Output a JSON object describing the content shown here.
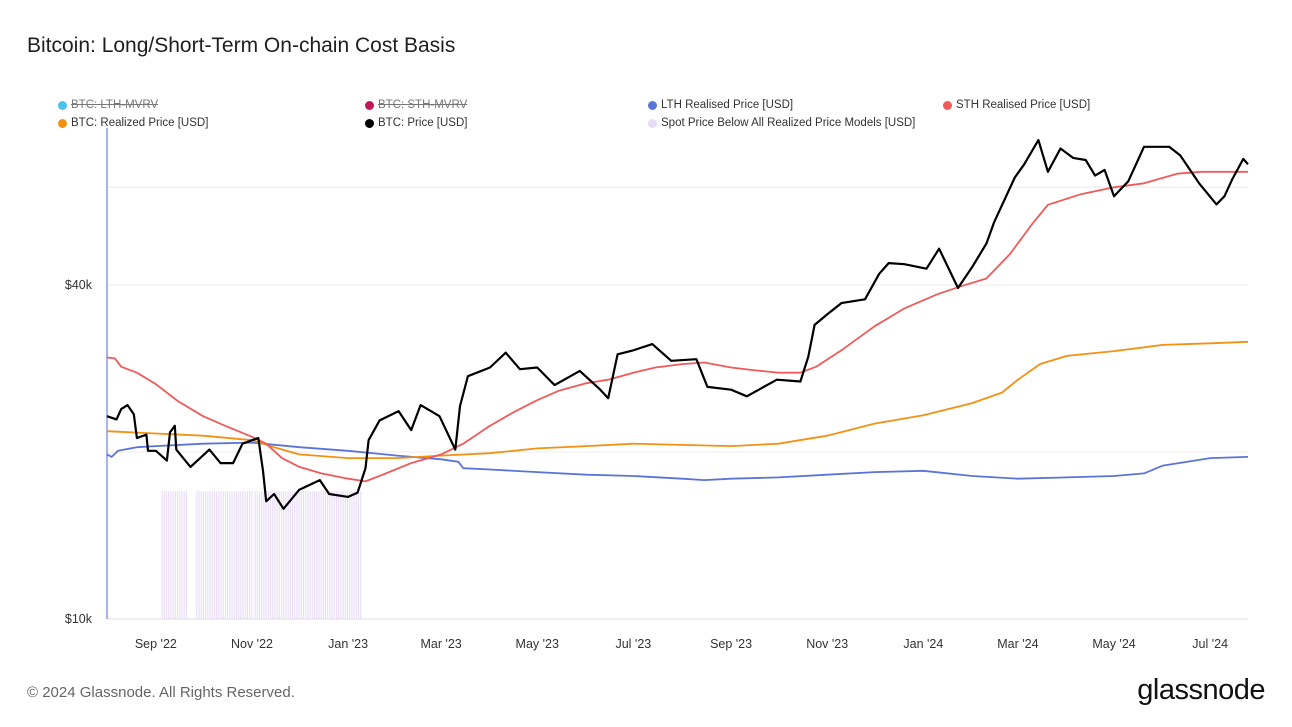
{
  "title": "Bitcoin: Long/Short-Term On-chain Cost Basis",
  "footer": "© 2024 Glassnode. All Rights Reserved.",
  "brand": "glassnode",
  "chart_data": {
    "type": "line",
    "title": "Bitcoin: Long/Short-Term On-chain Cost Basis",
    "y_scale": "log",
    "ylim": [
      10000,
      80000
    ],
    "y_ticks": [
      {
        "value": 10000,
        "label": "$10k"
      },
      {
        "value": 40000,
        "label": "$40k"
      }
    ],
    "x_range": [
      "2022-08-01",
      "2024-07-25"
    ],
    "x_ticks": [
      {
        "date": "2022-09-01",
        "label": "Sep '22"
      },
      {
        "date": "2022-11-01",
        "label": "Nov '22"
      },
      {
        "date": "2023-01-01",
        "label": "Jan '23"
      },
      {
        "date": "2023-03-01",
        "label": "Mar '23"
      },
      {
        "date": "2023-05-01",
        "label": "May '23"
      },
      {
        "date": "2023-07-01",
        "label": "Jul '23"
      },
      {
        "date": "2023-09-01",
        "label": "Sep '23"
      },
      {
        "date": "2023-11-01",
        "label": "Nov '23"
      },
      {
        "date": "2024-01-01",
        "label": "Jan '24"
      },
      {
        "date": "2024-03-01",
        "label": "Mar '24"
      },
      {
        "date": "2024-05-01",
        "label": "May '24"
      },
      {
        "date": "2024-07-01",
        "label": "Jul '24"
      }
    ],
    "legend": [
      {
        "name": "BTC: LTH-MVRV",
        "color": "#4cc3e8",
        "hidden": true
      },
      {
        "name": "BTC: STH-MVRV",
        "color": "#c2185b",
        "hidden": true
      },
      {
        "name": "LTH Realised Price [USD]",
        "color": "#5b74d8",
        "hidden": false
      },
      {
        "name": "STH Realised Price [USD]",
        "color": "#ef5a5a",
        "hidden": false
      },
      {
        "name": "BTC: Realized Price [USD]",
        "color": "#f39112",
        "hidden": false
      },
      {
        "name": "BTC: Price [USD]",
        "color": "#000000",
        "hidden": false
      },
      {
        "name": "Spot Price Below All Realized Price Models [USD]",
        "color": "#e8dcf7",
        "hidden": false
      }
    ],
    "shaded_periods": [
      [
        "2022-09-05",
        "2022-09-21"
      ],
      [
        "2022-09-27",
        "2022-11-01"
      ],
      [
        "2022-11-03",
        "2023-01-10"
      ]
    ],
    "series": [
      {
        "name": "BTC: Price [USD]",
        "color": "#000000",
        "width": 2.2,
        "points": [
          [
            "2022-08-01",
            23200
          ],
          [
            "2022-08-07",
            22900
          ],
          [
            "2022-08-10",
            23900
          ],
          [
            "2022-08-14",
            24300
          ],
          [
            "2022-08-18",
            23400
          ],
          [
            "2022-08-20",
            21200
          ],
          [
            "2022-08-26",
            21500
          ],
          [
            "2022-08-27",
            20100
          ],
          [
            "2022-09-01",
            20100
          ],
          [
            "2022-09-08",
            19300
          ],
          [
            "2022-09-10",
            21700
          ],
          [
            "2022-09-13",
            22300
          ],
          [
            "2022-09-14",
            20200
          ],
          [
            "2022-09-19",
            19400
          ],
          [
            "2022-09-23",
            18800
          ],
          [
            "2022-10-05",
            20200
          ],
          [
            "2022-10-12",
            19100
          ],
          [
            "2022-10-20",
            19100
          ],
          [
            "2022-10-26",
            20700
          ],
          [
            "2022-11-05",
            21200
          ],
          [
            "2022-11-08",
            18500
          ],
          [
            "2022-11-10",
            16300
          ],
          [
            "2022-11-15",
            16800
          ],
          [
            "2022-11-21",
            15800
          ],
          [
            "2022-12-01",
            17100
          ],
          [
            "2022-12-14",
            17800
          ],
          [
            "2022-12-20",
            16800
          ],
          [
            "2023-01-01",
            16600
          ],
          [
            "2023-01-07",
            16900
          ],
          [
            "2023-01-12",
            18700
          ],
          [
            "2023-01-14",
            21000
          ],
          [
            "2023-01-21",
            22800
          ],
          [
            "2023-02-02",
            23700
          ],
          [
            "2023-02-10",
            21900
          ],
          [
            "2023-02-16",
            24300
          ],
          [
            "2023-02-28",
            23200
          ],
          [
            "2023-03-10",
            20200
          ],
          [
            "2023-03-13",
            24200
          ],
          [
            "2023-03-18",
            27400
          ],
          [
            "2023-04-01",
            28400
          ],
          [
            "2023-04-11",
            30200
          ],
          [
            "2023-04-20",
            28200
          ],
          [
            "2023-05-01",
            28400
          ],
          [
            "2023-05-12",
            26400
          ],
          [
            "2023-05-28",
            28000
          ],
          [
            "2023-06-10",
            25900
          ],
          [
            "2023-06-15",
            25000
          ],
          [
            "2023-06-21",
            30000
          ],
          [
            "2023-07-01",
            30500
          ],
          [
            "2023-07-13",
            31300
          ],
          [
            "2023-07-25",
            29200
          ],
          [
            "2023-08-10",
            29400
          ],
          [
            "2023-08-17",
            26200
          ],
          [
            "2023-09-01",
            25900
          ],
          [
            "2023-09-11",
            25200
          ],
          [
            "2023-09-30",
            27000
          ],
          [
            "2023-10-15",
            26800
          ],
          [
            "2023-10-20",
            29700
          ],
          [
            "2023-10-24",
            33900
          ],
          [
            "2023-11-01",
            35400
          ],
          [
            "2023-11-10",
            37100
          ],
          [
            "2023-11-25",
            37700
          ],
          [
            "2023-12-04",
            41900
          ],
          [
            "2023-12-10",
            43800
          ],
          [
            "2023-12-20",
            43600
          ],
          [
            "2024-01-03",
            42800
          ],
          [
            "2024-01-11",
            46500
          ],
          [
            "2024-01-23",
            39500
          ],
          [
            "2024-02-01",
            43100
          ],
          [
            "2024-02-10",
            47500
          ],
          [
            "2024-02-15",
            52000
          ],
          [
            "2024-02-28",
            62500
          ],
          [
            "2024-03-05",
            66000
          ],
          [
            "2024-03-14",
            73000
          ],
          [
            "2024-03-20",
            64000
          ],
          [
            "2024-03-28",
            70500
          ],
          [
            "2024-04-05",
            67800
          ],
          [
            "2024-04-13",
            67200
          ],
          [
            "2024-04-19",
            63000
          ],
          [
            "2024-04-25",
            64500
          ],
          [
            "2024-05-01",
            57800
          ],
          [
            "2024-05-10",
            61500
          ],
          [
            "2024-05-20",
            71000
          ],
          [
            "2024-06-05",
            71000
          ],
          [
            "2024-06-12",
            68500
          ],
          [
            "2024-06-24",
            61000
          ],
          [
            "2024-07-05",
            55900
          ],
          [
            "2024-07-10",
            57800
          ],
          [
            "2024-07-15",
            62000
          ],
          [
            "2024-07-22",
            67500
          ],
          [
            "2024-07-25",
            66000
          ]
        ]
      },
      {
        "name": "STH Realised Price [USD]",
        "color": "#ef5a5a",
        "width": 1.8,
        "points": [
          [
            "2022-08-01",
            29600
          ],
          [
            "2022-08-06",
            29500
          ],
          [
            "2022-08-10",
            28500
          ],
          [
            "2022-08-20",
            27800
          ],
          [
            "2022-09-01",
            26500
          ],
          [
            "2022-09-15",
            24700
          ],
          [
            "2022-10-01",
            23200
          ],
          [
            "2022-10-15",
            22300
          ],
          [
            "2022-11-01",
            21300
          ],
          [
            "2022-11-10",
            20700
          ],
          [
            "2022-11-20",
            19500
          ],
          [
            "2022-12-01",
            18800
          ],
          [
            "2022-12-15",
            18300
          ],
          [
            "2023-01-01",
            17900
          ],
          [
            "2023-01-12",
            17700
          ],
          [
            "2023-01-25",
            18300
          ],
          [
            "2023-02-10",
            19100
          ],
          [
            "2023-03-01",
            19800
          ],
          [
            "2023-03-15",
            20700
          ],
          [
            "2023-04-01",
            22300
          ],
          [
            "2023-04-15",
            23500
          ],
          [
            "2023-05-01",
            24800
          ],
          [
            "2023-05-15",
            25800
          ],
          [
            "2023-06-01",
            26600
          ],
          [
            "2023-06-15",
            27000
          ],
          [
            "2023-07-01",
            27800
          ],
          [
            "2023-07-15",
            28400
          ],
          [
            "2023-08-01",
            28800
          ],
          [
            "2023-08-15",
            29000
          ],
          [
            "2023-09-01",
            28400
          ],
          [
            "2023-09-15",
            28100
          ],
          [
            "2023-10-01",
            27800
          ],
          [
            "2023-10-15",
            27800
          ],
          [
            "2023-10-25",
            28500
          ],
          [
            "2023-11-10",
            30500
          ],
          [
            "2023-12-01",
            33700
          ],
          [
            "2023-12-20",
            36300
          ],
          [
            "2024-01-10",
            38500
          ],
          [
            "2024-01-25",
            39800
          ],
          [
            "2024-02-10",
            41100
          ],
          [
            "2024-02-25",
            45500
          ],
          [
            "2024-03-10",
            51500
          ],
          [
            "2024-03-20",
            55800
          ],
          [
            "2024-04-10",
            58300
          ],
          [
            "2024-05-01",
            60000
          ],
          [
            "2024-05-20",
            61000
          ],
          [
            "2024-06-10",
            63500
          ],
          [
            "2024-06-25",
            64000
          ],
          [
            "2024-07-10",
            64000
          ],
          [
            "2024-07-25",
            64000
          ]
        ]
      },
      {
        "name": "BTC: Realized Price [USD]",
        "color": "#f39112",
        "width": 1.8,
        "points": [
          [
            "2022-08-01",
            21800
          ],
          [
            "2022-09-01",
            21600
          ],
          [
            "2022-10-01",
            21400
          ],
          [
            "2022-11-01",
            21000
          ],
          [
            "2022-11-15",
            20400
          ],
          [
            "2022-12-01",
            19800
          ],
          [
            "2023-01-01",
            19500
          ],
          [
            "2023-02-01",
            19500
          ],
          [
            "2023-03-01",
            19700
          ],
          [
            "2023-04-01",
            19900
          ],
          [
            "2023-05-01",
            20300
          ],
          [
            "2023-06-01",
            20500
          ],
          [
            "2023-07-01",
            20700
          ],
          [
            "2023-08-01",
            20600
          ],
          [
            "2023-09-01",
            20500
          ],
          [
            "2023-10-01",
            20700
          ],
          [
            "2023-11-01",
            21400
          ],
          [
            "2023-12-01",
            22500
          ],
          [
            "2024-01-01",
            23300
          ],
          [
            "2024-02-01",
            24500
          ],
          [
            "2024-02-20",
            25600
          ],
          [
            "2024-03-01",
            27000
          ],
          [
            "2024-03-15",
            28800
          ],
          [
            "2024-04-01",
            29800
          ],
          [
            "2024-05-01",
            30400
          ],
          [
            "2024-06-01",
            31200
          ],
          [
            "2024-07-01",
            31400
          ],
          [
            "2024-07-25",
            31600
          ]
        ]
      },
      {
        "name": "LTH Realised Price [USD]",
        "color": "#5b74d8",
        "width": 1.8,
        "points": [
          [
            "2022-08-01",
            19800
          ],
          [
            "2022-08-04",
            19600
          ],
          [
            "2022-08-08",
            20100
          ],
          [
            "2022-08-20",
            20400
          ],
          [
            "2022-09-01",
            20500
          ],
          [
            "2022-10-01",
            20700
          ],
          [
            "2022-11-01",
            20800
          ],
          [
            "2022-12-01",
            20400
          ],
          [
            "2023-01-01",
            20100
          ],
          [
            "2023-02-01",
            19700
          ],
          [
            "2023-03-01",
            19400
          ],
          [
            "2023-03-12",
            19200
          ],
          [
            "2023-03-15",
            18700
          ],
          [
            "2023-04-01",
            18600
          ],
          [
            "2023-05-01",
            18400
          ],
          [
            "2023-06-01",
            18200
          ],
          [
            "2023-07-01",
            18100
          ],
          [
            "2023-08-01",
            17900
          ],
          [
            "2023-08-15",
            17800
          ],
          [
            "2023-09-01",
            17900
          ],
          [
            "2023-10-01",
            18000
          ],
          [
            "2023-11-01",
            18200
          ],
          [
            "2023-12-01",
            18400
          ],
          [
            "2024-01-01",
            18500
          ],
          [
            "2024-02-01",
            18100
          ],
          [
            "2024-03-01",
            17900
          ],
          [
            "2024-04-01",
            18000
          ],
          [
            "2024-05-01",
            18100
          ],
          [
            "2024-05-20",
            18300
          ],
          [
            "2024-06-01",
            18900
          ],
          [
            "2024-07-01",
            19500
          ],
          [
            "2024-07-25",
            19600
          ]
        ]
      }
    ]
  }
}
